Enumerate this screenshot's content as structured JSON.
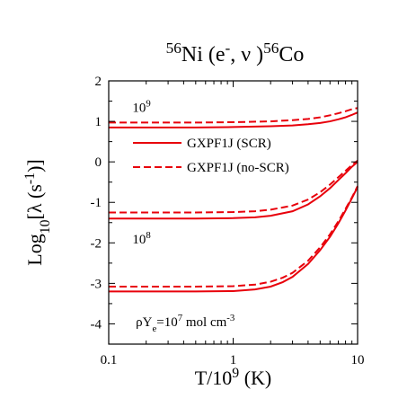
{
  "chart_data": {
    "type": "line",
    "title": {
      "parts": [
        {
          "text": "56",
          "sup": true
        },
        {
          "text": "Ni (e"
        },
        {
          "text": "-",
          "sup": true
        },
        {
          "text": ", ν )"
        },
        {
          "text": "56",
          "sup": true
        },
        {
          "text": "Co"
        }
      ]
    },
    "xlabel": {
      "parts": [
        {
          "text": "T/10"
        },
        {
          "text": "9",
          "sup": true
        },
        {
          "text": " (K)"
        }
      ]
    },
    "ylabel": {
      "parts": [
        {
          "text": "Log"
        },
        {
          "text": "10",
          "sub": true
        },
        {
          "text": "[λ (s"
        },
        {
          "text": "-1",
          "sup": true
        },
        {
          "text": ")]"
        }
      ]
    },
    "x_scale": "log",
    "xlim": [
      0.1,
      10
    ],
    "ylim": [
      -4.5,
      2
    ],
    "x_ticks": [
      {
        "value": 0.1,
        "label": "0.1"
      },
      {
        "value": 1,
        "label": "1"
      },
      {
        "value": 10,
        "label": "10"
      }
    ],
    "y_ticks": [
      {
        "value": 2,
        "label": "2"
      },
      {
        "value": 1,
        "label": "1"
      },
      {
        "value": 0,
        "label": "0"
      },
      {
        "value": -1,
        "label": "-1"
      },
      {
        "value": -2,
        "label": "-2"
      },
      {
        "value": -3,
        "label": "-3"
      },
      {
        "value": -4,
        "label": "-4"
      }
    ],
    "grid": false,
    "legend": {
      "position": "center",
      "entries": [
        {
          "label": "GXPF1J (SCR)",
          "style": "solid"
        },
        {
          "label": "GXPF1J (no-SCR)",
          "style": "dashed"
        }
      ]
    },
    "annotations": [
      {
        "parts": [
          {
            "text": "10"
          },
          {
            "text": "9",
            "sup": true
          }
        ],
        "x": 0.155,
        "y": 1.35
      },
      {
        "parts": [
          {
            "text": "10"
          },
          {
            "text": "8",
            "sup": true
          }
        ],
        "x": 0.155,
        "y": -1.9
      },
      {
        "parts": [
          {
            "text": "ρY"
          },
          {
            "text": "e",
            "sub": true
          },
          {
            "text": "=10"
          },
          {
            "text": "7",
            "sup": true
          },
          {
            "text": " mol cm"
          },
          {
            "text": "-3",
            "sup": true
          }
        ],
        "x": 0.165,
        "y": -3.95
      }
    ],
    "color": "#e8000b",
    "series": [
      {
        "group": "10^9",
        "style": "solid",
        "x": [
          0.1,
          0.5,
          1,
          2,
          3,
          4,
          5,
          6,
          7,
          8,
          9,
          10
        ],
        "y": [
          0.85,
          0.85,
          0.86,
          0.88,
          0.9,
          0.93,
          0.96,
          1.0,
          1.05,
          1.1,
          1.16,
          1.22
        ]
      },
      {
        "group": "10^9",
        "style": "dashed",
        "x": [
          0.1,
          0.5,
          1,
          2,
          3,
          4,
          5,
          6,
          7,
          8,
          9,
          10
        ],
        "y": [
          0.97,
          0.97,
          0.98,
          1.0,
          1.03,
          1.06,
          1.1,
          1.15,
          1.2,
          1.25,
          1.3,
          1.33
        ]
      },
      {
        "group": "10^8",
        "style": "solid",
        "x": [
          0.1,
          0.5,
          1,
          1.5,
          2,
          3,
          4,
          5,
          6,
          7,
          8,
          9,
          10
        ],
        "y": [
          -1.4,
          -1.4,
          -1.39,
          -1.37,
          -1.33,
          -1.22,
          -1.05,
          -0.85,
          -0.65,
          -0.45,
          -0.28,
          -0.12,
          0.0
        ]
      },
      {
        "group": "10^8",
        "style": "dashed",
        "x": [
          0.1,
          0.5,
          1,
          1.5,
          2,
          3,
          4,
          5,
          6,
          7,
          8,
          9,
          10
        ],
        "y": [
          -1.25,
          -1.25,
          -1.24,
          -1.22,
          -1.18,
          -1.08,
          -0.93,
          -0.75,
          -0.56,
          -0.38,
          -0.22,
          -0.08,
          0.03
        ]
      },
      {
        "group": "10^7",
        "style": "solid",
        "x": [
          0.1,
          0.5,
          1,
          1.5,
          2,
          2.5,
          3,
          4,
          5,
          6,
          7,
          8,
          9,
          10
        ],
        "y": [
          -3.2,
          -3.2,
          -3.19,
          -3.15,
          -3.08,
          -2.97,
          -2.84,
          -2.52,
          -2.18,
          -1.85,
          -1.52,
          -1.2,
          -0.9,
          -0.62
        ]
      },
      {
        "group": "10^7",
        "style": "dashed",
        "x": [
          0.1,
          0.5,
          1,
          1.5,
          2,
          2.5,
          3,
          4,
          5,
          6,
          7,
          8,
          9,
          10
        ],
        "y": [
          -3.08,
          -3.08,
          -3.07,
          -3.03,
          -2.96,
          -2.86,
          -2.74,
          -2.44,
          -2.11,
          -1.79,
          -1.47,
          -1.16,
          -0.88,
          -0.6
        ]
      }
    ]
  }
}
